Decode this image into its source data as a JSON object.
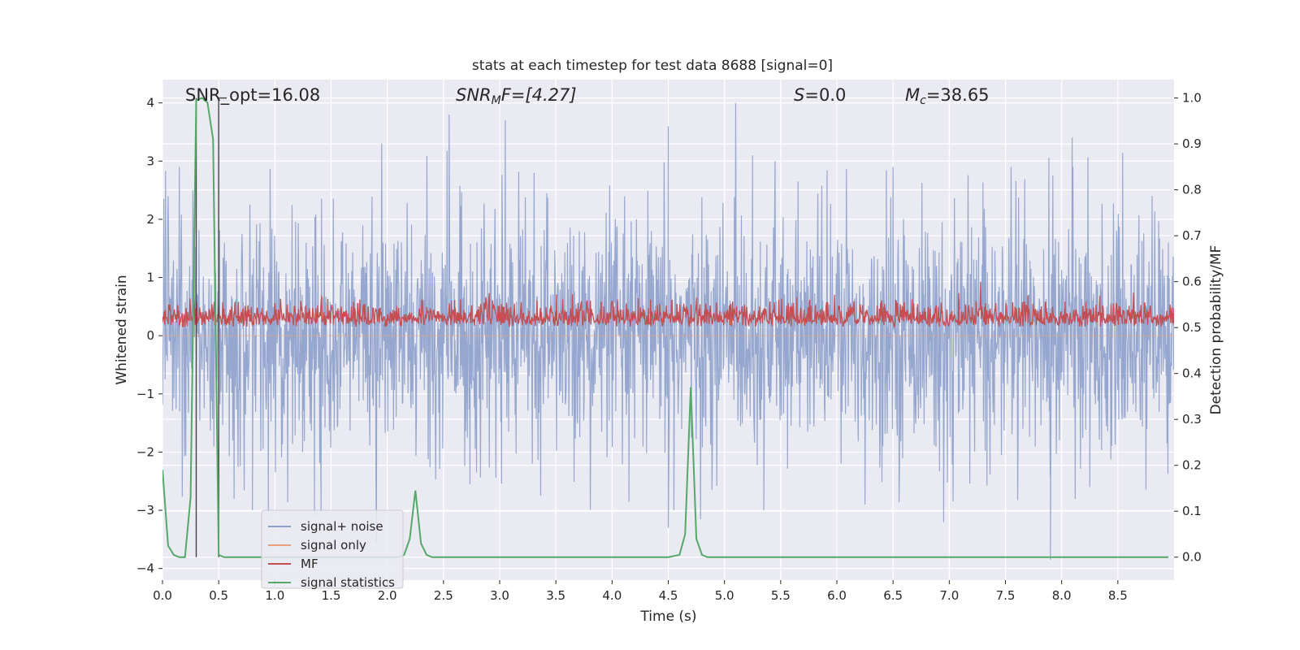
{
  "chart_data": {
    "type": "line",
    "title": "stats at each timestep for test data 8688 [signal=0]",
    "xlabel": "Time (s)",
    "ylabel_left": "Whitened strain",
    "ylabel_right": "Detection probability/MF",
    "xlim": [
      0.0,
      9.0
    ],
    "ylim_left": [
      -4.2,
      4.4
    ],
    "ylim_right": [
      -0.05,
      1.04
    ],
    "xticks": [
      0.0,
      0.5,
      1.0,
      1.5,
      2.0,
      2.5,
      3.0,
      3.5,
      4.0,
      4.5,
      5.0,
      5.5,
      6.0,
      6.5,
      7.0,
      7.5,
      8.0,
      8.5
    ],
    "xtick_labels": [
      "0.0",
      "0.5",
      "1.0",
      "1.5",
      "2.0",
      "2.5",
      "3.0",
      "3.5",
      "4.0",
      "4.5",
      "5.0",
      "5.5",
      "6.0",
      "6.5",
      "7.0",
      "7.5",
      "8.0",
      "8.5"
    ],
    "yticks_left": [
      -4,
      -3,
      -2,
      -1,
      0,
      1,
      2,
      3,
      4
    ],
    "ytick_labels_left": [
      "−4",
      "−3",
      "−2",
      "−1",
      "0",
      "1",
      "2",
      "3",
      "4"
    ],
    "yticks_right": [
      0.0,
      0.1,
      0.2,
      0.3,
      0.4,
      0.5,
      0.6,
      0.7,
      0.8,
      0.9,
      1.0
    ],
    "ytick_labels_right": [
      "0.0",
      "0.1",
      "0.2",
      "0.3",
      "0.4",
      "0.5",
      "0.6",
      "0.7",
      "0.8",
      "0.9",
      "1.0"
    ],
    "grid": true,
    "legend_placement": "lower-left",
    "annotations": {
      "snr_opt": "SNR_opt=16.08",
      "snr_mf_main": "SNR",
      "snr_mf_sub": "M",
      "snr_mf_tail": "F=[4.27]",
      "s_main": "S",
      "s_tail": "=0.0",
      "mc_main": "M",
      "mc_sub": "c",
      "mc_tail": "=38.65"
    },
    "vertical_markers_x": [
      0.3,
      0.5
    ],
    "series": [
      {
        "name": "signal+ noise",
        "axis": "left",
        "color": "#8da0cb",
        "description_range": [
          -3.85,
          4.0
        ],
        "notable_peaks": [
          [
            0.05,
            2.4
          ],
          [
            0.15,
            2.9
          ],
          [
            0.27,
            2.5
          ],
          [
            1.95,
            3.3
          ],
          [
            2.55,
            3.8
          ],
          [
            3.05,
            3.7
          ],
          [
            4.5,
            3.6
          ],
          [
            5.1,
            4.0
          ],
          [
            5.25,
            3.1
          ],
          [
            5.45,
            3.0
          ],
          [
            6.5,
            2.9
          ],
          [
            7.55,
            2.9
          ],
          [
            8.1,
            2.9
          ]
        ],
        "notable_troughs": [
          [
            0.8,
            -3.0
          ],
          [
            4.5,
            -3.3
          ],
          [
            4.55,
            -3.0
          ],
          [
            5.35,
            -3.0
          ],
          [
            6.25,
            -2.9
          ],
          [
            6.95,
            -3.2
          ],
          [
            7.9,
            -3.85
          ],
          [
            8.25,
            -2.6
          ]
        ]
      },
      {
        "name": "signal only",
        "axis": "left",
        "color": "#e8a07a",
        "values_constant": 0.0
      },
      {
        "name": "MF",
        "axis": "right",
        "color": "#c44e52",
        "description_range": [
          0.5,
          0.6
        ],
        "notable_peaks": [
          [
            2.6,
            0.56
          ],
          [
            7.7,
            0.57
          ]
        ]
      },
      {
        "name": "signal statistics",
        "axis": "right",
        "color": "#55a868",
        "x": [
          0.0,
          0.05,
          0.1,
          0.15,
          0.2,
          0.25,
          0.3,
          0.35,
          0.4,
          0.45,
          0.5,
          0.55,
          0.6,
          0.65,
          0.7,
          0.75,
          0.8,
          0.85,
          0.9,
          0.95,
          1.0,
          1.5,
          2.0,
          2.1,
          2.15,
          2.2,
          2.25,
          2.3,
          2.35,
          2.4,
          2.45,
          2.5,
          3.0,
          3.5,
          4.0,
          4.5,
          4.6,
          4.65,
          4.7,
          4.75,
          4.8,
          4.85,
          4.9,
          5.0,
          5.5,
          6.0,
          6.5,
          7.0,
          7.5,
          8.0,
          8.5,
          8.95
        ],
        "y": [
          0.19,
          0.025,
          0.005,
          0.0,
          0.0,
          0.13,
          0.995,
          1.0,
          0.99,
          0.91,
          0.005,
          0.0,
          0.0,
          0.0,
          0.0,
          0.0,
          0.0,
          0.0,
          0.0,
          0.0,
          0.0,
          0.0,
          0.0,
          0.0,
          0.005,
          0.04,
          0.145,
          0.03,
          0.005,
          0.0,
          0.0,
          0.0,
          0.0,
          0.0,
          0.0,
          0.0,
          0.005,
          0.05,
          0.37,
          0.04,
          0.005,
          0.0,
          0.0,
          0.0,
          0.0,
          0.0,
          0.0,
          0.0,
          0.0,
          0.0,
          0.0,
          0.0
        ]
      }
    ]
  }
}
